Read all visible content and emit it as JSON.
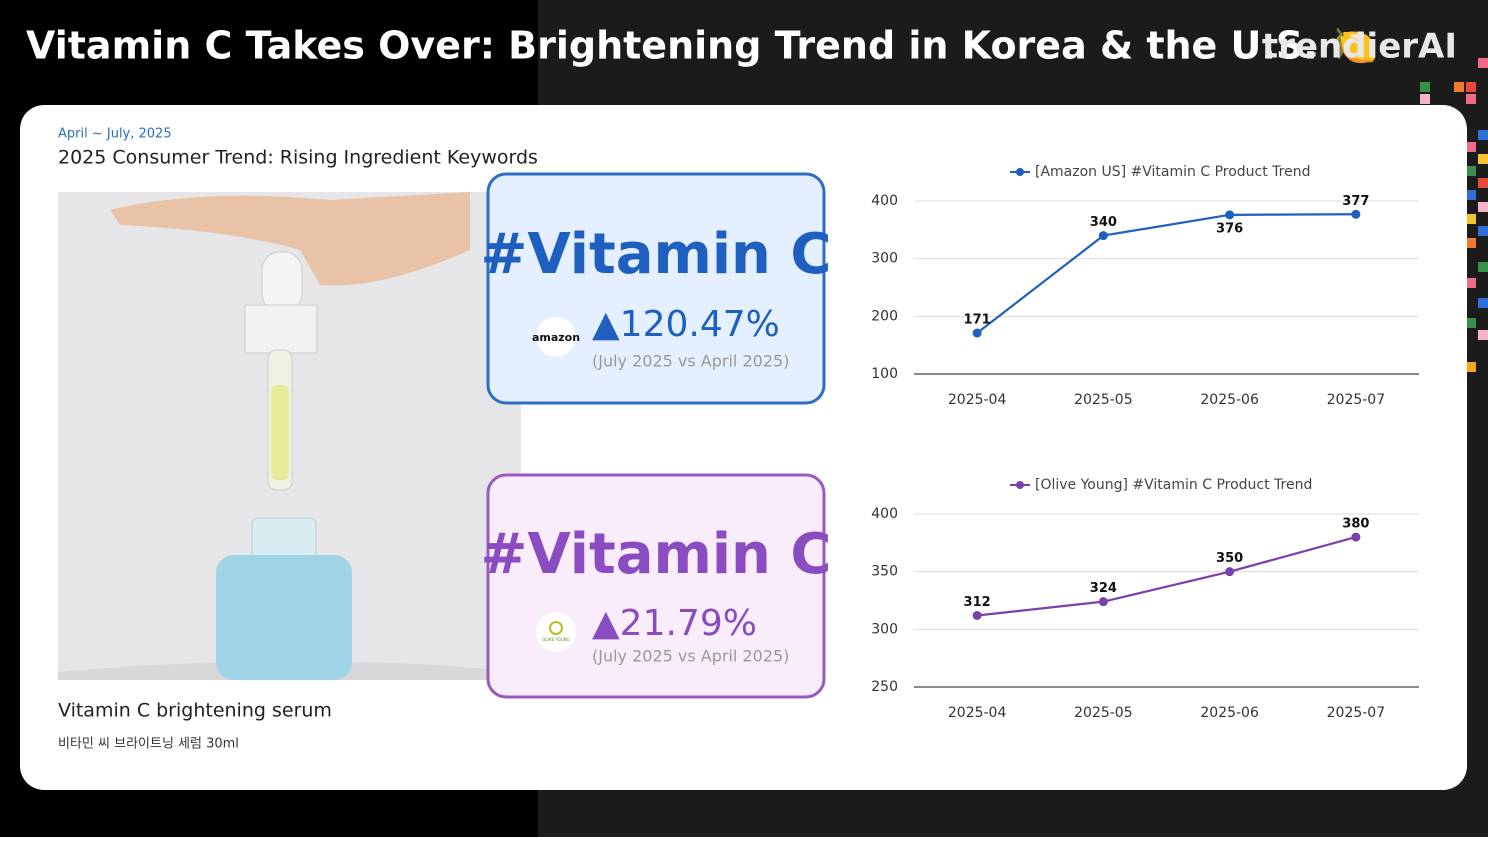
{
  "header": {
    "title": "Vitamin C Takes Over: Brightening Trend in Korea & the U.S. 🍋",
    "brand": "trendierAI"
  },
  "panel": {
    "date": "April ~ July, 2025",
    "heading": "2025 Consumer Trend: Rising Ingredient Keywords"
  },
  "product": {
    "name": "Vitamin C brightening serum",
    "subname": "비타민 씨 브라이트닝 세럼 30ml"
  },
  "cards": [
    {
      "keyword": "#Vitamin C",
      "logo": "amazon",
      "change": "▲120.47%",
      "note": "(July 2025 vs April 2025)"
    },
    {
      "keyword": "#Vitamin C",
      "logo": "OLIVE YOUNG",
      "change": "▲21.79%",
      "note": "(July 2025 vs April 2025)"
    }
  ],
  "chart_data": [
    {
      "type": "line",
      "categories": [
        "2025-04",
        "2025-05",
        "2025-06",
        "2025-07"
      ],
      "series": [
        {
          "name": "[Amazon US] #Vitamin C Product Trend",
          "color": "#1f5fbf",
          "values": [
            171,
            340,
            376,
            377
          ]
        }
      ],
      "ylim": [
        100,
        400
      ],
      "yticks": [
        100,
        200,
        300,
        400
      ],
      "grid": true
    },
    {
      "type": "line",
      "categories": [
        "2025-04",
        "2025-05",
        "2025-06",
        "2025-07"
      ],
      "series": [
        {
          "name": "[Olive Young] #Vitamin C Product Trend",
          "color": "#7b3fb0",
          "values": [
            312,
            324,
            350,
            380
          ]
        }
      ],
      "ylim": [
        250,
        400
      ],
      "yticks": [
        250,
        300,
        350,
        400
      ],
      "grid": true
    }
  ]
}
